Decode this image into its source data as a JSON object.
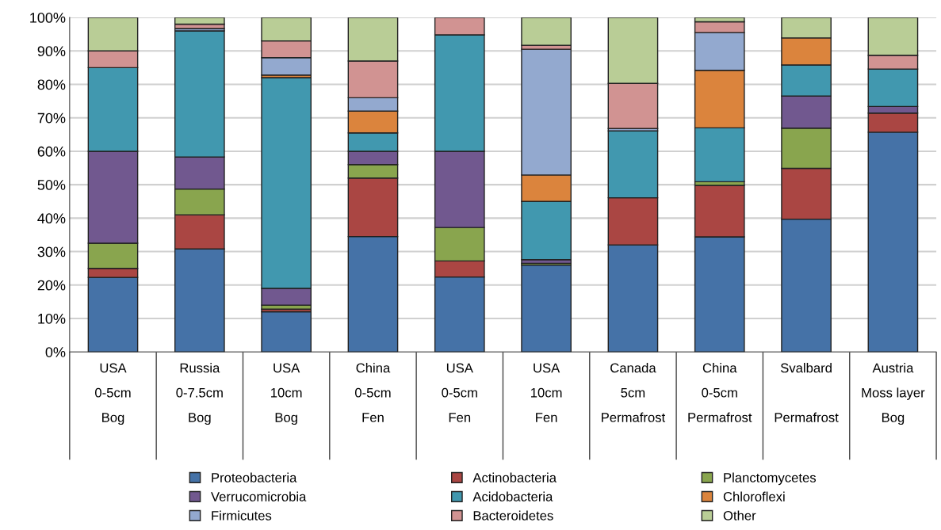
{
  "chart_data": {
    "type": "bar",
    "stacked": true,
    "categories": [
      "USA\n0-5cm\nBog",
      "Russia\n0-7.5cm\nBog",
      "USA\n10cm\nBog",
      "China\n0-5cm\nFen",
      "USA\n0-5cm\nFen",
      "USA\n10cm\nFen",
      "Canada\n5cm\nPermafrost",
      "China\n0-5cm\nPermafrost",
      "Svalbard\n\nPermafrost",
      "Austria\nMoss layer\nBog"
    ],
    "series": [
      {
        "name": "Proteobacteria",
        "color": "#4572a7",
        "values": [
          22.3,
          30.8,
          12,
          34.5,
          22.4,
          26,
          32,
          34.4,
          39.7,
          65.7
        ]
      },
      {
        "name": "Actinobacteria",
        "color": "#aa4643",
        "values": [
          2.7,
          10.2,
          0.8,
          17.5,
          4.8,
          0,
          14.1,
          15.4,
          15.2,
          5.7
        ]
      },
      {
        "name": "Planctomycetes",
        "color": "#89a54e",
        "values": [
          7.5,
          7.7,
          1.2,
          4,
          10,
          0.5,
          null,
          1.1,
          12,
          0
        ]
      },
      {
        "name": "Verrucomicrobia",
        "color": "#71588f",
        "values": [
          27.5,
          9.6,
          5,
          4,
          22.8,
          1.1,
          null,
          0,
          9.6,
          2
        ]
      },
      {
        "name": "Acidobacteria",
        "color": "#4198af",
        "values": [
          25,
          37.7,
          63,
          5.5,
          34.8,
          17.4,
          20,
          16.1,
          9.3,
          11.2
        ]
      },
      {
        "name": "Chloroflexi",
        "color": "#db843d",
        "values": [
          0,
          0,
          0.8,
          6.5,
          0,
          7.9,
          0,
          17.2,
          8.1,
          0
        ]
      },
      {
        "name": "Firmicutes",
        "color": "#93a9cf",
        "values": [
          0,
          0.7,
          5.2,
          4,
          0,
          37.6,
          0.7,
          11.3,
          0,
          0
        ]
      },
      {
        "name": "Bacteroidetes",
        "color": "#d19392",
        "values": [
          5,
          1.3,
          5,
          11,
          5.2,
          1.2,
          13.5,
          3.2,
          0,
          4.1
        ]
      },
      {
        "name": "Other",
        "color": "#b9cd96",
        "values": [
          10,
          2,
          7,
          13,
          0,
          8.3,
          19.7,
          1.3,
          6.1,
          11.3
        ]
      }
    ],
    "ylim": [
      0,
      100
    ],
    "yticks": [
      {
        "value": 0,
        "label": "0%"
      },
      {
        "value": 10,
        "label": "10%"
      },
      {
        "value": 20,
        "label": "20%"
      },
      {
        "value": 30,
        "label": "30%"
      },
      {
        "value": 40,
        "label": "40%"
      },
      {
        "value": 50,
        "label": "50%"
      },
      {
        "value": 60,
        "label": "60%"
      },
      {
        "value": 70,
        "label": "70%"
      },
      {
        "value": 80,
        "label": "80%"
      },
      {
        "value": 90,
        "label": "90%"
      },
      {
        "value": 100,
        "label": "100%"
      }
    ],
    "grid": "y",
    "legend": "bottom"
  }
}
